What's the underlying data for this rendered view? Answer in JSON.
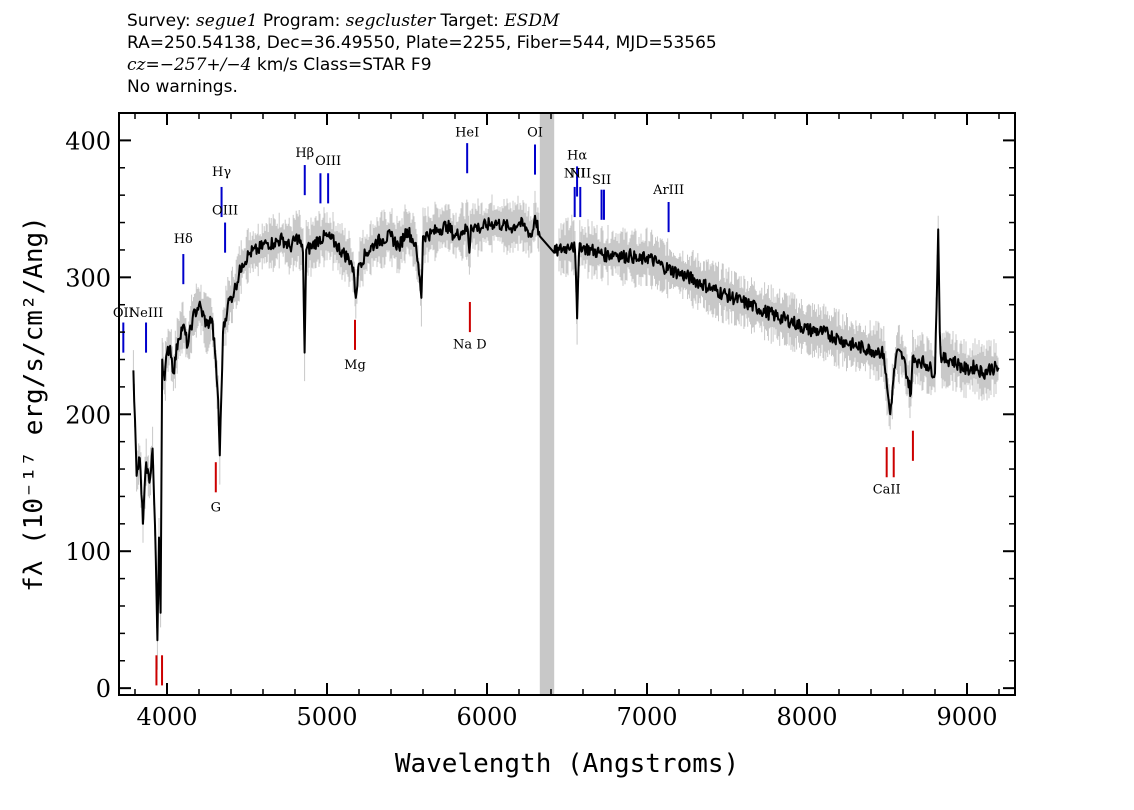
{
  "header": {
    "line1": {
      "survey_label": "Survey: ",
      "survey": "segue1",
      "program_label": " Program: ",
      "program": "segcluster",
      "target_label": " Target: ",
      "target": "ESDM"
    },
    "line2": "RA=250.54138, Dec=36.49550, Plate=2255, Fiber=544, MJD=53565",
    "line3": {
      "cz": "cz=−257+/−4",
      "rest": " km/s Class=STAR F9"
    },
    "line4": "No warnings."
  },
  "chart_data": {
    "type": "line",
    "xlabel": "Wavelength (Angstroms)",
    "ylabel": "fλ (10⁻¹⁷ erg/s/cm²/Ang)",
    "xlim": [
      3700,
      9300
    ],
    "ylim": [
      -5,
      420
    ],
    "x_ticks": [
      4000,
      5000,
      6000,
      7000,
      8000,
      9000
    ],
    "y_ticks": [
      0,
      100,
      200,
      300,
      400
    ],
    "masked_region": [
      6330,
      6420
    ],
    "series": [
      {
        "color": "#000000",
        "x": [
          3760,
          3790,
          3810,
          3830,
          3850,
          3870,
          3890,
          3910,
          3930,
          3940,
          3950,
          3960,
          3970,
          3985,
          4000,
          4020,
          4040,
          4070,
          4100,
          4130,
          4160,
          4200,
          4250,
          4280,
          4300,
          4320,
          4330,
          4350,
          4380,
          4420,
          4470,
          4520,
          4570,
          4620,
          4670,
          4720,
          4770,
          4820,
          4850,
          4860,
          4870,
          4900,
          4950,
          5000,
          5050,
          5100,
          5150,
          5170,
          5180,
          5200,
          5250,
          5300,
          5350,
          5400,
          5450,
          5500,
          5550,
          5580,
          5590,
          5600,
          5650,
          5700,
          5750,
          5800,
          5850,
          5880,
          5890,
          5900,
          5950,
          6000,
          6050,
          6100,
          6150,
          6200,
          6250,
          6280,
          6300,
          6330,
          6420,
          6450,
          6500,
          6530,
          6550,
          6560,
          6563,
          6570,
          6580,
          6600,
          6650,
          6700,
          6750,
          6800,
          6850,
          6900,
          6950,
          7000,
          7100,
          7200,
          7300,
          7400,
          7500,
          7600,
          7700,
          7800,
          7900,
          8000,
          8100,
          8200,
          8300,
          8400,
          8450,
          8480,
          8500,
          8520,
          8540,
          8560,
          8600,
          8650,
          8660,
          8670,
          8700,
          8750,
          8800,
          8820,
          8830,
          8840,
          8850,
          8900,
          8950,
          9000,
          9050,
          9100,
          9150,
          9200
        ],
        "y": [
          null,
          232,
          155,
          168,
          120,
          165,
          150,
          175,
          95,
          35,
          110,
          55,
          240,
          225,
          245,
          250,
          230,
          255,
          265,
          250,
          270,
          280,
          265,
          270,
          245,
          210,
          170,
          260,
          280,
          290,
          310,
          318,
          320,
          325,
          325,
          328,
          322,
          330,
          318,
          245,
          320,
          322,
          328,
          330,
          325,
          318,
          312,
          300,
          285,
          310,
          318,
          325,
          328,
          330,
          322,
          335,
          325,
          300,
          285,
          330,
          332,
          335,
          338,
          330,
          334,
          335,
          318,
          338,
          336,
          338,
          340,
          338,
          336,
          340,
          335,
          330,
          345,
          330,
          318,
          320,
          322,
          325,
          320,
          285,
          270,
          300,
          325,
          322,
          320,
          318,
          316,
          318,
          315,
          316,
          312,
          315,
          308,
          303,
          298,
          292,
          287,
          282,
          277,
          272,
          268,
          262,
          260,
          255,
          250,
          247,
          246,
          244,
          220,
          200,
          225,
          245,
          242,
          215,
          242,
          238,
          240,
          236,
          230,
          335,
          260,
          238,
          240,
          240,
          236,
          232,
          235,
          230,
          234,
          233
        ]
      }
    ],
    "error_band_color": "#c8c8c8",
    "line_markers": [
      {
        "label": "Hδ",
        "x": 4102,
        "color": "#0000cc",
        "type": "emission",
        "y1": 295,
        "y2": 317,
        "label_y": 325
      },
      {
        "label": "Hγ",
        "x": 4341,
        "color": "#0000cc",
        "type": "emission",
        "y1": 344,
        "y2": 366,
        "label_y": 374
      },
      {
        "label": "OIII",
        "x": 4363,
        "color": "#0000cc",
        "type": "emission",
        "y1": 318,
        "y2": 340,
        "label_y": 346
      },
      {
        "label": "Hβ",
        "x": 4861,
        "color": "#0000cc",
        "type": "emission",
        "y1": 360,
        "y2": 382,
        "label_y": 388
      },
      {
        "label": "OIII",
        "x": 4959,
        "color": "#0000cc",
        "type": "emission",
        "y1": 354,
        "y2": 376,
        "label_y": null
      },
      {
        "label": "OIII",
        "x": 5007,
        "color": "#0000cc",
        "type": "emission",
        "y1": 354,
        "y2": 376,
        "label_y": 382
      },
      {
        "label": "HeI",
        "x": 5876,
        "color": "#0000cc",
        "type": "emission",
        "y1": 376,
        "y2": 398,
        "label_y": 403
      },
      {
        "label": "OI",
        "x": 6300,
        "color": "#0000cc",
        "type": "emission",
        "y1": 375,
        "y2": 397,
        "label_y": 403
      },
      {
        "label": "NII",
        "x": 6548,
        "color": "#0000cc",
        "type": "emission",
        "y1": 344,
        "y2": 366,
        "label_y": 373
      },
      {
        "label": "Hα",
        "x": 6563,
        "color": "#0000cc",
        "type": "emission",
        "y1": 359,
        "y2": 381,
        "label_y": 386
      },
      {
        "label": "NII",
        "x": 6583,
        "color": "#0000cc",
        "type": "emission",
        "y1": 344,
        "y2": 366,
        "label_y": 373
      },
      {
        "label": "SII",
        "x": 6716,
        "color": "#0000cc",
        "type": "emission",
        "y1": 342,
        "y2": 364,
        "label_y": 368
      },
      {
        "label": "SII",
        "x": 6731,
        "color": "#0000cc",
        "type": "emission",
        "y1": 342,
        "y2": 364,
        "label_y": null
      },
      {
        "label": "ArIII",
        "x": 7135,
        "color": "#0000cc",
        "type": "emission",
        "y1": 333,
        "y2": 355,
        "label_y": 361
      },
      {
        "label": "NeIII",
        "x": 3869,
        "color": "#0000cc",
        "type": "emission",
        "y1": 245,
        "y2": 267,
        "label_y": 271
      },
      {
        "label": "OII",
        "x": 3727,
        "color": "#0000cc",
        "type": "emission",
        "y1": 245,
        "y2": 267,
        "label_y": 271
      },
      {
        "label": "Mg",
        "x": 5175,
        "color": "#cc0000",
        "type": "absorption",
        "y1": 247,
        "y2": 269,
        "label_y": 233
      },
      {
        "label": "Na D",
        "x": 5893,
        "color": "#cc0000",
        "type": "absorption",
        "y1": 260,
        "y2": 282,
        "label_y": 248
      },
      {
        "label": "G",
        "x": 4305,
        "color": "#cc0000",
        "type": "absorption",
        "y1": 143,
        "y2": 165,
        "label_y": 129
      },
      {
        "label": "CaII",
        "x": 8498,
        "color": "#cc0000",
        "type": "absorption",
        "y1": 154,
        "y2": 176,
        "label_y": 142
      },
      {
        "label": "CaII",
        "x": 8542,
        "color": "#cc0000",
        "type": "absorption",
        "y1": 154,
        "y2": 176,
        "label_y": null
      },
      {
        "label": "CaII",
        "x": 8662,
        "color": "#cc0000",
        "type": "absorption",
        "y1": 166,
        "y2": 188,
        "label_y": null
      },
      {
        "label": "CaII",
        "x": 3934,
        "color": "#cc0000",
        "type": "absorption",
        "y1": 2,
        "y2": 24,
        "label_y": null
      },
      {
        "label": "CaII",
        "x": 3969,
        "color": "#cc0000",
        "type": "absorption",
        "y1": 2,
        "y2": 24,
        "label_y": null
      }
    ]
  }
}
